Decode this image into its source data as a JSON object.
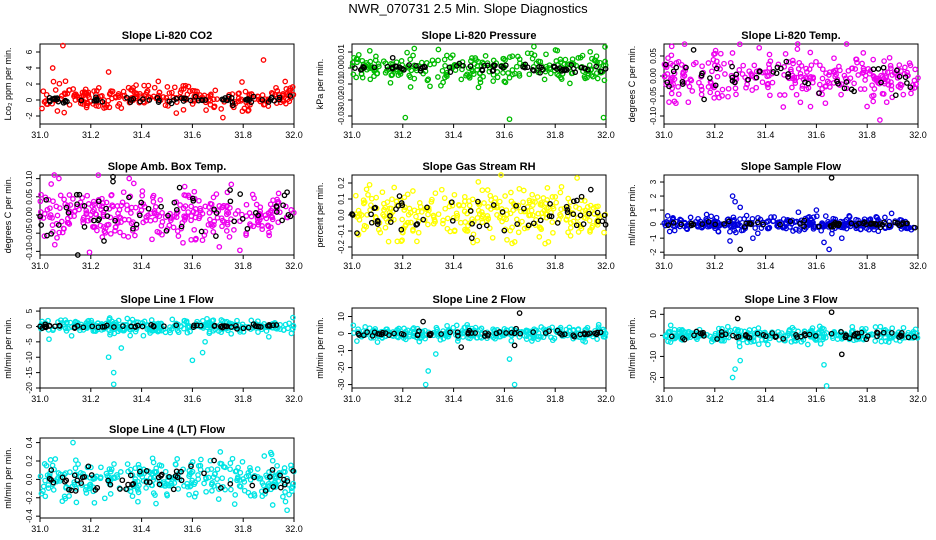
{
  "page": {
    "title": "NWR_070731  2.5 Min. Slope Diagnostics"
  },
  "chart_data": [
    {
      "type": "scatter",
      "title": "Slope Li-820 CO2",
      "ylabel": "Lco₂ ppm per min.",
      "xlim": [
        31.0,
        32.0
      ],
      "ylim": [
        -3.0,
        7.0
      ],
      "xticks": [
        "31.0",
        "31.2",
        "31.4",
        "31.6",
        "31.8",
        "32.0"
      ],
      "yticks": [
        "-2",
        "0",
        "2",
        "4",
        "6"
      ],
      "series": [
        {
          "color": "#ff0000",
          "center": 0.3,
          "spread": 1.0,
          "count": 260,
          "outliers": [
            [
              31.09,
              6.8
            ],
            [
              31.05,
              4.0
            ],
            [
              31.27,
              3.5
            ],
            [
              31.88,
              5.0
            ],
            [
              31.72,
              -2.2
            ]
          ]
        },
        {
          "color": "#000000",
          "center": 0.0,
          "spread": 0.3,
          "count": 70
        }
      ]
    },
    {
      "type": "scatter",
      "title": "Slope Li-820 Pressure",
      "ylabel": "kPa per min.",
      "xlim": [
        31.0,
        32.0
      ],
      "ylim": [
        -0.035,
        0.015
      ],
      "xticks": [
        "31.0",
        "31.2",
        "31.4",
        "31.6",
        "31.8",
        "32.0"
      ],
      "yticks": [
        "-0.03",
        "-0.02",
        "-0.01",
        "0.00",
        "0.01"
      ],
      "series": [
        {
          "color": "#00bb00",
          "center": 0.0,
          "spread": 0.006,
          "count": 260,
          "outliers": [
            [
              31.21,
              -0.031
            ],
            [
              31.62,
              -0.032
            ],
            [
              31.99,
              -0.031
            ]
          ]
        },
        {
          "color": "#000000",
          "center": 0.0,
          "spread": 0.002,
          "count": 70
        }
      ]
    },
    {
      "type": "scatter",
      "title": "Slope Li-820 Temp.",
      "ylabel": "degrees C per min.",
      "xlim": [
        31.0,
        32.0
      ],
      "ylim": [
        -0.12,
        0.08
      ],
      "xticks": [
        "31.0",
        "31.2",
        "31.4",
        "31.6",
        "31.8",
        "32.0"
      ],
      "yticks": [
        "-0.10",
        "-0.05",
        "0.00",
        "0.05"
      ],
      "series": [
        {
          "color": "#ee00ee",
          "center": 0.0,
          "spread": 0.04,
          "count": 300,
          "outliers": [
            [
              31.85,
              -0.11
            ]
          ]
        },
        {
          "color": "#000000",
          "center": 0.0,
          "spread": 0.035,
          "count": 50
        }
      ]
    },
    {
      "type": "scatter",
      "title": "Slope Amb. Box Temp.",
      "ylabel": "degrees C per min.",
      "xlim": [
        31.0,
        32.0
      ],
      "ylim": [
        -0.11,
        0.11
      ],
      "xticks": [
        "31.0",
        "31.2",
        "31.4",
        "31.6",
        "31.8",
        "32.0"
      ],
      "yticks": [
        "-0.10",
        "-0.05",
        "0.00",
        "0.05",
        "0.10"
      ],
      "series": [
        {
          "color": "#ee00ee",
          "center": 0.0,
          "spread": 0.05,
          "count": 320
        },
        {
          "color": "#000000",
          "center": 0.0,
          "spread": 0.05,
          "count": 60
        }
      ]
    },
    {
      "type": "scatter",
      "title": "Slope Gas Stream RH",
      "ylabel": "percent per min.",
      "xlim": [
        31.0,
        32.0
      ],
      "ylim": [
        -0.25,
        0.25
      ],
      "xticks": [
        "31.0",
        "31.2",
        "31.4",
        "31.6",
        "31.8",
        "32.0"
      ],
      "yticks": [
        "-0.2",
        "-0.1",
        "0.0",
        "0.1",
        "0.2"
      ],
      "series": [
        {
          "color": "#ffff00",
          "center": 0.0,
          "spread": 0.1,
          "count": 320
        },
        {
          "color": "#000000",
          "center": 0.0,
          "spread": 0.08,
          "count": 60
        }
      ]
    },
    {
      "type": "scatter",
      "title": "Slope Sample Flow",
      "ylabel": "ml/min per min.",
      "xlim": [
        31.0,
        32.0
      ],
      "ylim": [
        -2.2,
        3.5
      ],
      "xticks": [
        "31.0",
        "31.2",
        "31.4",
        "31.6",
        "31.8",
        "32.0"
      ],
      "yticks": [
        "-2",
        "-1",
        "0",
        "1",
        "2",
        "3"
      ],
      "series": [
        {
          "color": "#0000dd",
          "center": 0.0,
          "spread": 0.35,
          "count": 300,
          "outliers": [
            [
              31.27,
              2.0
            ],
            [
              31.28,
              1.6
            ],
            [
              31.3,
              1.2
            ],
            [
              31.26,
              -1.2
            ],
            [
              31.35,
              -1.0
            ],
            [
              31.6,
              1.0
            ],
            [
              31.63,
              -1.3
            ],
            [
              31.65,
              -1.8
            ],
            [
              31.7,
              -1.0
            ]
          ]
        },
        {
          "color": "#000000",
          "center": 0.0,
          "spread": 0.15,
          "count": 60,
          "outliers": [
            [
              31.66,
              3.3
            ],
            [
              31.3,
              -1.8
            ]
          ]
        }
      ]
    },
    {
      "type": "scatter",
      "title": "Slope Line 1 Flow",
      "ylabel": "ml/min per min.",
      "xlim": [
        31.0,
        32.0
      ],
      "ylim": [
        -20.0,
        6.0
      ],
      "xticks": [
        "31.0",
        "31.2",
        "31.4",
        "31.6",
        "31.8",
        "32.0"
      ],
      "yticks": [
        "-20",
        "-15",
        "-10",
        "-5",
        "0",
        "5"
      ],
      "series": [
        {
          "color": "#00e5e5",
          "center": 0.0,
          "spread": 1.6,
          "count": 300,
          "outliers": [
            [
              31.29,
              -18.8
            ],
            [
              31.29,
              -15.0
            ],
            [
              31.27,
              -10.0
            ],
            [
              31.32,
              -7.0
            ],
            [
              31.65,
              -5.0
            ],
            [
              31.64,
              -8.5
            ],
            [
              31.6,
              -11.0
            ]
          ]
        },
        {
          "color": "#000000",
          "center": 0.0,
          "spread": 0.4,
          "count": 60
        }
      ]
    },
    {
      "type": "scatter",
      "title": "Slope Line 2 Flow",
      "ylabel": "ml/min per min.",
      "xlim": [
        31.0,
        32.0
      ],
      "ylim": [
        -32.0,
        15.0
      ],
      "xticks": [
        "31.0",
        "31.2",
        "31.4",
        "31.6",
        "31.8",
        "32.0"
      ],
      "yticks": [
        "-30",
        "-20",
        "-10",
        "0",
        "10"
      ],
      "series": [
        {
          "color": "#00e5e5",
          "center": 0.0,
          "spread": 2.5,
          "count": 300,
          "outliers": [
            [
              31.29,
              -30.0
            ],
            [
              31.3,
              -22.0
            ],
            [
              31.33,
              -12.0
            ],
            [
              31.64,
              -30.0
            ],
            [
              31.62,
              -15.0
            ]
          ]
        },
        {
          "color": "#000000",
          "center": 0.0,
          "spread": 1.2,
          "count": 60,
          "outliers": [
            [
              31.66,
              12.0
            ],
            [
              31.28,
              7.0
            ],
            [
              31.43,
              -8.0
            ],
            [
              31.64,
              -7.0
            ]
          ]
        }
      ]
    },
    {
      "type": "scatter",
      "title": "Slope Line 3 Flow",
      "ylabel": "ml/min per min.",
      "xlim": [
        31.0,
        32.0
      ],
      "ylim": [
        -25.0,
        13.0
      ],
      "xticks": [
        "31.0",
        "31.2",
        "31.4",
        "31.6",
        "31.8",
        "32.0"
      ],
      "yticks": [
        "-20",
        "-10",
        "0",
        "10"
      ],
      "series": [
        {
          "color": "#00e5e5",
          "center": 0.0,
          "spread": 2.3,
          "count": 300,
          "outliers": [
            [
              31.27,
              -20.0
            ],
            [
              31.28,
              -16.0
            ],
            [
              31.3,
              -12.0
            ],
            [
              31.64,
              -24.0
            ],
            [
              31.63,
              -14.0
            ]
          ]
        },
        {
          "color": "#000000",
          "center": 0.0,
          "spread": 1.0,
          "count": 60,
          "outliers": [
            [
              31.66,
              11.0
            ],
            [
              31.29,
              8.0
            ],
            [
              31.7,
              -9.0
            ]
          ]
        }
      ]
    },
    {
      "type": "scatter",
      "title": "Slope Line 4 (LT) Flow",
      "ylabel": "ml/min per min.",
      "xlim": [
        31.0,
        32.0
      ],
      "ylim": [
        -0.42,
        0.45
      ],
      "xticks": [
        "31.0",
        "31.2",
        "31.4",
        "31.6",
        "31.8",
        "32.0"
      ],
      "yticks": [
        "-0.4",
        "-0.2",
        "0.0",
        "0.2",
        "0.4"
      ],
      "series": [
        {
          "color": "#00e5e5",
          "center": 0.0,
          "spread": 0.15,
          "count": 320,
          "outliers": [
            [
              31.13,
              0.4
            ]
          ]
        },
        {
          "color": "#000000",
          "center": 0.0,
          "spread": 0.12,
          "count": 60
        }
      ]
    }
  ]
}
